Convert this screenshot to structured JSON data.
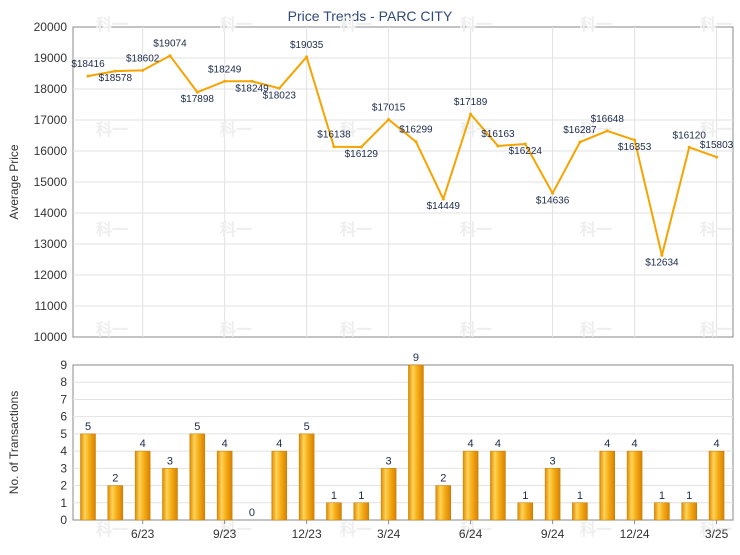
{
  "chart_data": [
    {
      "type": "line",
      "title": "Price Trends - PARC CITY",
      "ylabel": "Average Price",
      "xlabel": "",
      "ylim": [
        10000,
        20000
      ],
      "yticks": [
        10000,
        11000,
        12000,
        13000,
        14000,
        15000,
        16000,
        17000,
        18000,
        19000,
        20000
      ],
      "grid": true,
      "line_color": "#f5a400",
      "watermark": "科一",
      "series": [
        {
          "values": [
            18416,
            18578,
            18602,
            19074,
            17898,
            18249,
            18249,
            18023,
            19035,
            16138,
            16129,
            17015,
            16299,
            14449,
            17189,
            16163,
            16224,
            14636,
            16287,
            16648,
            16353,
            12634,
            16120,
            15803
          ],
          "labels": [
            "$18416",
            "$18578",
            "$18602",
            "$19074",
            "$17898",
            "$18249",
            "$18249",
            "$18023",
            "$19035",
            "$16138",
            "$16129",
            "$17015",
            "$16299",
            "$14449",
            "$17189",
            "$16163",
            "$16224",
            "$14636",
            "$16287",
            "$16648",
            "$16353",
            "$12634",
            "$16120",
            "$15803"
          ]
        }
      ]
    },
    {
      "type": "bar",
      "ylabel": "No. of Transactions",
      "ylim": [
        0,
        9
      ],
      "yticks": [
        0,
        1,
        2,
        3,
        4,
        5,
        6,
        7,
        8,
        9
      ],
      "grid": true,
      "bar_color": "#f5b020",
      "x_tick_labels": [
        "6/23",
        "9/23",
        "12/23",
        "3/24",
        "6/24",
        "9/24",
        "12/24",
        "3/25"
      ],
      "values": [
        5,
        2,
        4,
        3,
        5,
        4,
        0,
        4,
        5,
        1,
        1,
        3,
        9,
        2,
        4,
        4,
        1,
        3,
        1,
        4,
        4,
        1,
        1,
        4
      ]
    }
  ]
}
